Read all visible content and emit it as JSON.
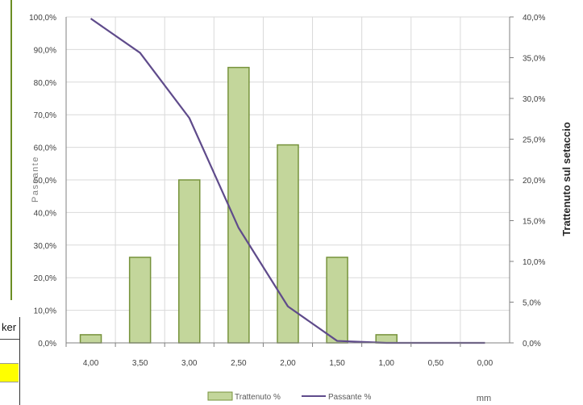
{
  "fragment_text": "ker",
  "chart_data": {
    "type": "bar",
    "categories": [
      "4,00",
      "3,50",
      "3,00",
      "2,50",
      "2,00",
      "1,50",
      "1,00",
      "0,50",
      "0,00"
    ],
    "series": [
      {
        "name": "Trattenuto %",
        "type": "bar",
        "axis": "right",
        "values": [
          1.0,
          10.5,
          20.0,
          33.8,
          24.3,
          10.5,
          1.0,
          0.0,
          0.0
        ]
      },
      {
        "name": "Passante %",
        "type": "line",
        "axis": "left",
        "values": [
          99.5,
          89.0,
          69.0,
          35.3,
          11.2,
          0.6,
          0.0,
          0.0,
          0.0
        ]
      }
    ],
    "ylabel": "Passante",
    "y2label": "Trattenuto sul setaccio",
    "xlabel": "mm",
    "ylim": [
      0,
      100
    ],
    "y2lim": [
      0,
      40
    ],
    "yticks": [
      "0,0%",
      "10,0%",
      "20,0%",
      "30,0%",
      "40,0%",
      "50,0%",
      "60,0%",
      "70,0%",
      "80,0%",
      "90,0%",
      "100,0%"
    ],
    "y2ticks": [
      "0,0%",
      "5,0%",
      "10,0%",
      "15,0%",
      "20,0%",
      "25,0%",
      "30,0%",
      "35,0%",
      "40,0%"
    ],
    "grid": true,
    "legend_position": "bottom",
    "colors": {
      "bar_fill": "#c3d69b",
      "bar_stroke": "#77933c",
      "line": "#5f4b8b",
      "grid": "#d9d9d9",
      "axis": "#808080",
      "text": "#404040"
    }
  }
}
